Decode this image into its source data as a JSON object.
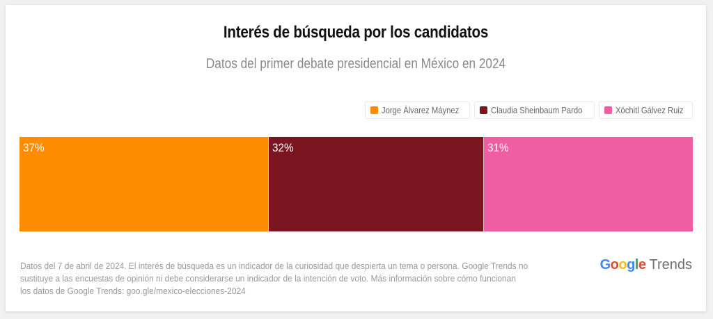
{
  "chart_data": {
    "type": "bar",
    "subtype": "stacked-100-horizontal",
    "title": "Interés de búsqueda por los candidatos",
    "subtitle": "Datos del primer debate presidencial en México en 2024",
    "categories": [
      "Jorge Álvarez Máynez",
      "Claudia Sheinbaum Pardo",
      "Xóchitl Gálvez Ruiz"
    ],
    "values": [
      37,
      32,
      31
    ],
    "labels": [
      "37%",
      "32%",
      "31%"
    ],
    "colors": [
      "#ff8c00",
      "#7b1520",
      "#ef5da2"
    ],
    "unit": "%",
    "xlim": [
      0,
      100
    ],
    "legend_position": "top-right",
    "grid": false,
    "xlabel": "",
    "ylabel": ""
  },
  "footnote": {
    "lines": [
      "Datos del 7 de abril de 2024. El interés de búsqueda es un indicador de la curiosidad que despierta un tema o persona. Google Trends no",
      "sustituye a las encuestas de opinión ni debe considerarse un indicador de la intención de voto. Más información sobre cómo funcionan",
      "los datos de Google Trends: goo.gle/mexico-elecciones-2024"
    ]
  },
  "logo": {
    "google_letters": [
      {
        "ch": "G",
        "color": "#4285f4"
      },
      {
        "ch": "o",
        "color": "#ea4335"
      },
      {
        "ch": "o",
        "color": "#fbbc05"
      },
      {
        "ch": "g",
        "color": "#4285f4"
      },
      {
        "ch": "l",
        "color": "#34a853"
      },
      {
        "ch": "e",
        "color": "#ea4335"
      }
    ],
    "product": "Trends"
  }
}
